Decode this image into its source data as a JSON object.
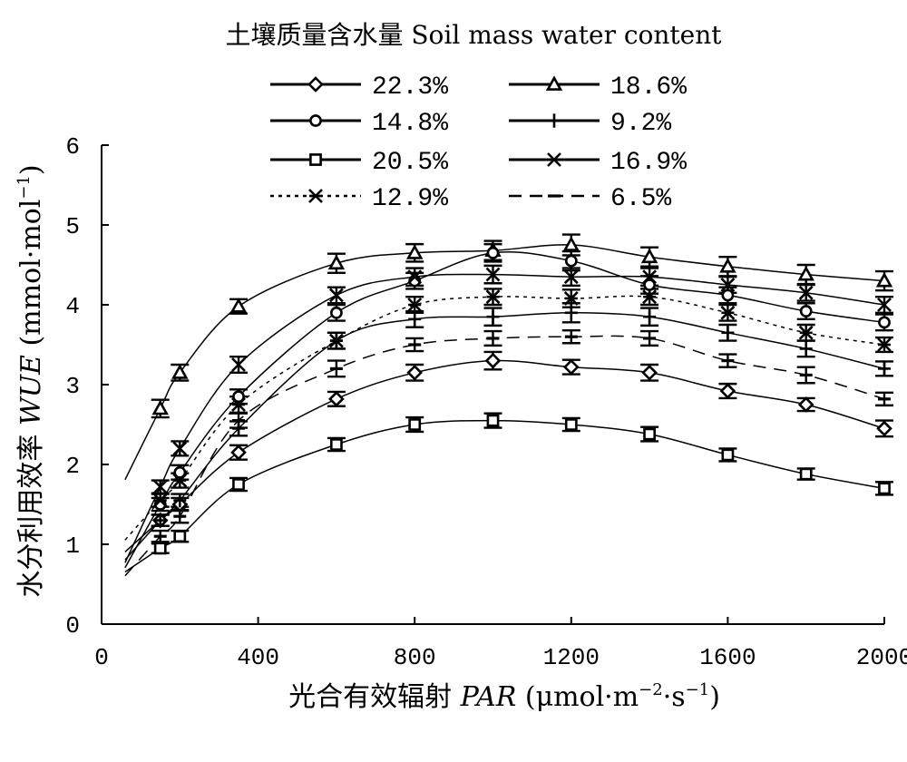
{
  "chart_data": {
    "type": "line",
    "legend_title": "土壤质量含水量 Soil mass water content",
    "xlabel_prefix": "光合有效辐射 ",
    "xlabel_var": "PAR",
    "xlabel_unit": " (μmol·m",
    "xlabel_sup1": "−2",
    "xlabel_mid": "·s",
    "xlabel_sup2": "−1",
    "xlabel_end": ")",
    "ylabel_prefix": "水分利用效率 ",
    "ylabel_var": "WUE",
    "ylabel_unit": " (mmol·mol",
    "ylabel_sup": "−1",
    "ylabel_end": ")",
    "xlim": [
      0,
      2000
    ],
    "ylim": [
      0,
      6
    ],
    "xticks": [
      0,
      400,
      800,
      1200,
      1600,
      2000
    ],
    "yticks": [
      0,
      1,
      2,
      3,
      4,
      5,
      6
    ],
    "x": [
      150,
      200,
      350,
      600,
      800,
      1000,
      1200,
      1400,
      1600,
      1800,
      2000
    ],
    "grid": false,
    "legend_placement": "top",
    "series": [
      {
        "name": "22.3%",
        "marker": "diamond",
        "dash": "solid",
        "values": [
          1.3,
          1.5,
          2.15,
          2.82,
          3.15,
          3.3,
          3.22,
          3.15,
          2.92,
          2.75,
          2.45
        ],
        "errors": [
          0.07,
          0.08,
          0.09,
          0.09,
          0.1,
          0.11,
          0.09,
          0.1,
          0.09,
          0.08,
          0.1
        ],
        "fit": [
          0.0178,
          -0.3,
          -9.6e-06
        ]
      },
      {
        "name": "18.6%",
        "marker": "triangle",
        "dash": "solid",
        "values": [
          2.7,
          3.15,
          3.98,
          4.52,
          4.65,
          4.68,
          4.75,
          4.6,
          4.48,
          4.38,
          4.3
        ],
        "errors": [
          0.11,
          0.1,
          0.09,
          0.12,
          0.11,
          0.12,
          0.13,
          0.12,
          0.12,
          0.12,
          0.12
        ],
        "fit": [
          0.025,
          -0.48,
          -1.25e-05
        ]
      },
      {
        "name": "14.8%",
        "marker": "circle",
        "dash": "solid",
        "values": [
          1.5,
          1.9,
          2.85,
          3.9,
          4.3,
          4.65,
          4.55,
          4.25,
          4.12,
          3.92,
          3.78
        ],
        "errors": [
          0.08,
          0.09,
          0.09,
          0.1,
          0.1,
          0.11,
          0.12,
          0.11,
          0.1,
          0.1,
          0.1
        ],
        "fit": [
          0.0203,
          -0.76,
          -9.9e-06
        ]
      },
      {
        "name": "9.2%",
        "marker": "plus",
        "dash": "solid",
        "values": [
          1.3,
          1.55,
          2.45,
          3.55,
          3.82,
          3.85,
          3.9,
          3.85,
          3.65,
          3.45,
          3.2
        ],
        "errors": [
          0.07,
          0.08,
          0.09,
          0.1,
          0.1,
          0.11,
          0.12,
          0.11,
          0.1,
          0.1,
          0.09
        ],
        "fit": [
          0.0177,
          -0.56,
          -8.6e-06
        ]
      },
      {
        "name": "20.5%",
        "marker": "square",
        "dash": "solid",
        "values": [
          0.95,
          1.1,
          1.75,
          2.25,
          2.5,
          2.55,
          2.5,
          2.38,
          2.12,
          1.88,
          1.7
        ],
        "errors": [
          0.06,
          0.07,
          0.08,
          0.08,
          0.09,
          0.09,
          0.08,
          0.09,
          0.08,
          0.07,
          0.08
        ],
        "fit": [
          0.0145,
          -0.4,
          -7.8e-06
        ]
      },
      {
        "name": "16.9%",
        "marker": "x",
        "dash": "solid",
        "values": [
          1.72,
          2.2,
          3.25,
          4.12,
          4.35,
          4.38,
          4.35,
          4.35,
          4.25,
          4.15,
          4.0
        ],
        "errors": [
          0.08,
          0.09,
          0.1,
          0.1,
          0.11,
          0.11,
          0.11,
          0.11,
          0.1,
          0.1,
          0.1
        ],
        "fit": [
          0.0187,
          -0.23,
          -9e-06
        ]
      },
      {
        "name": "12.9%",
        "marker": "asterisk",
        "dash": "dotted",
        "values": [
          1.55,
          1.8,
          2.75,
          3.55,
          4.0,
          4.1,
          4.08,
          4.1,
          3.9,
          3.65,
          3.5
        ],
        "errors": [
          0.08,
          0.09,
          0.1,
          0.1,
          0.1,
          0.1,
          0.11,
          0.1,
          0.1,
          0.1,
          0.09
        ],
        "fit": [
          0.0197,
          -0.72,
          -9.3e-06
        ]
      },
      {
        "name": "6.5%",
        "marker": "dash",
        "dash": "dashed",
        "values": [
          1.1,
          1.35,
          2.55,
          3.2,
          3.5,
          3.58,
          3.6,
          3.58,
          3.3,
          3.12,
          2.82
        ],
        "errors": [
          0.07,
          0.08,
          0.09,
          0.1,
          0.08,
          0.09,
          0.08,
          0.09,
          0.08,
          0.1,
          0.08
        ],
        "fit": [
          0.0166,
          -0.55,
          -8.6e-06
        ]
      }
    ]
  }
}
